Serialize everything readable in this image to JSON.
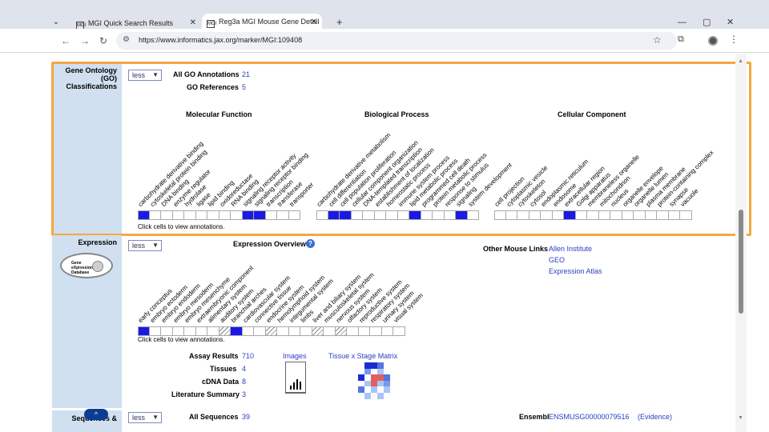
{
  "browser": {
    "tabs": [
      {
        "title": "MGI Quick Search Results",
        "favicon": "MGI",
        "active": false
      },
      {
        "title": "Reg3a MGI Mouse Gene Detail",
        "favicon": "MGI",
        "active": true
      }
    ],
    "url": "https://www.informatics.jax.org/marker/MGI:109408"
  },
  "go": {
    "section_title": "Gene Ontology (GO) Classifications",
    "less_label": "less",
    "all_annotations_label": "All GO Annotations",
    "all_annotations_count": "21",
    "references_label": "GO References",
    "references_count": "5",
    "columns": [
      {
        "heading": "Molecular Function",
        "terms": [
          "carbohydrate derivative binding",
          "cytoskeletal protein binding",
          "DNA binding",
          "enzyme regulator",
          "hydrolase",
          "ligase",
          "lipid binding",
          "oxidoreductase",
          "RNA binding",
          "signaling receptor activity",
          "signaling receptor binding",
          "transcription",
          "transferase",
          "transporter"
        ],
        "filled": [
          true,
          false,
          false,
          false,
          false,
          false,
          false,
          false,
          false,
          true,
          true,
          false,
          false,
          false
        ]
      },
      {
        "heading": "Biological Process",
        "terms": [
          "carbohydrate derivative metabolism",
          "cell differentiation",
          "cell population proliferation",
          "cellular component organization",
          "DNA-templated transcription",
          "establishment of localization",
          "homeostatic process",
          "immune system process",
          "lipid metabolic process",
          "programmed cell death",
          "protein metabolic process",
          "response to stimulus",
          "signaling",
          "system development"
        ],
        "filled": [
          false,
          true,
          true,
          false,
          false,
          false,
          false,
          false,
          true,
          false,
          false,
          false,
          true,
          false
        ]
      },
      {
        "heading": "Cellular Component",
        "terms": [
          "cell projection",
          "cytoplasmic vesicle",
          "cytoskeleton",
          "cytosol",
          "endoplasmic reticulum",
          "endosome",
          "extracellular region",
          "Golgi apparatus",
          "membraneless organelle",
          "mitochondrion",
          "nucleus",
          "organelle envelope",
          "organelle lumen",
          "plasma membrane",
          "protein-containing complex",
          "synapse",
          "vacuole"
        ],
        "filled": [
          false,
          false,
          false,
          false,
          false,
          false,
          true,
          false,
          false,
          false,
          false,
          false,
          false,
          false,
          false,
          false,
          false
        ]
      }
    ],
    "hint": "Click cells to view annotations."
  },
  "expression": {
    "section_title": "Expression",
    "less_label": "less",
    "overview_label": "Expression Overview",
    "help_icon_text": "?",
    "logo_text": [
      "Gene",
      "eXpression",
      "Database"
    ],
    "terms": [
      "early conceptus",
      "embryo ectoderm",
      "embryo endoderm",
      "embryo mesoderm",
      "embryo mesenchyme",
      "extraembryonic component",
      "alimentary system",
      "auditory system",
      "branchial arches",
      "cardiovascular system",
      "connective tissue",
      "endocrine system",
      "hemolymphoid system",
      "integumental system",
      "limbs",
      "liver and biliary system",
      "musculoskeletal system",
      "nervous system",
      "olfactory system",
      "reproductive system",
      "respiratory system",
      "urinary system",
      "visual system"
    ],
    "cells": [
      "on",
      "",
      "",
      "",
      "",
      "",
      "",
      "hatch",
      "on",
      "",
      "",
      "hatch",
      "",
      "",
      "",
      "hatch",
      "",
      "hatch",
      "",
      "",
      "",
      "",
      ""
    ],
    "hint": "Click cells to view annotations.",
    "other_links_label": "Other Mouse Links",
    "other_links": [
      "Allen Institute",
      "GEO",
      "Expression Atlas"
    ],
    "assay_results_label": "Assay Results",
    "assay_results_count": "710",
    "tissues_label": "Tissues",
    "tissues_count": "4",
    "cdna_label": "cDNA Data",
    "cdna_count": "8",
    "literature_label": "Literature Summary",
    "literature_count": "3",
    "images_label": "Images",
    "matrix_label": "Tissue x Stage Matrix",
    "matrix_colors": [
      "#ffffff",
      "#1c2bd6",
      "#1c2bd6",
      "#5577dd",
      "#ffffff",
      "#ffffff",
      "#ffffff",
      "#7799ee",
      "#ffffff",
      "#aac4f5",
      "#ffffff",
      "#ffffff",
      "#1c2bd6",
      "#ffffff",
      "#e06060",
      "#e06060",
      "#5577dd",
      "#ffffff",
      "#ffffff",
      "#aac4f5",
      "#e06060",
      "#aac4f5",
      "#7799ee",
      "#ffffff",
      "#5577dd",
      "#ffffff",
      "#aac4f5",
      "#ffffff",
      "#aac4f5",
      "#ffffff",
      "#ffffff",
      "#aac4f5",
      "#ffffff",
      "#aac4f5",
      "#ffffff",
      "#ffffff"
    ]
  },
  "sequences": {
    "section_title": "Sequences &",
    "less_label": "less",
    "all_sequences_label": "All Sequences",
    "all_sequences_count": "39",
    "ensembl_label": "Ensembl",
    "ensembl_id": "ENSMUSG00000079516",
    "evidence_label": "(Evidence)"
  },
  "colors": {
    "highlight": "#f5a742",
    "label_bg": "#d0e0f0",
    "link": "#2b3fbf",
    "cell_on": "#1a1ae6"
  }
}
